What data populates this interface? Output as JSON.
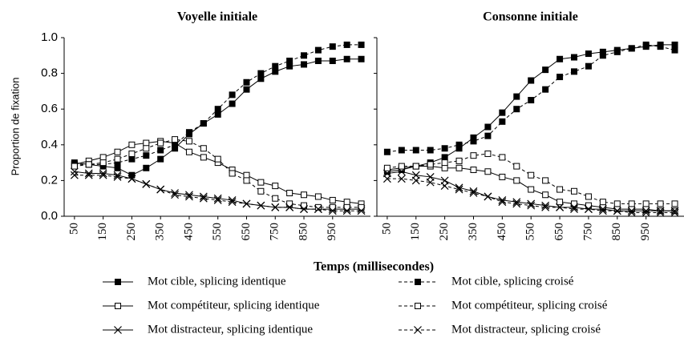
{
  "y_label": "Proportion de fixation",
  "x_label": "Temps (millisecondes)",
  "chart_data": [
    {
      "type": "line",
      "title": "Voyelle initiale",
      "x": [
        50,
        100,
        150,
        200,
        250,
        300,
        350,
        400,
        450,
        500,
        550,
        600,
        650,
        700,
        750,
        800,
        850,
        900,
        950,
        1000,
        1050
      ],
      "xlim": [
        14,
        1082
      ],
      "xticks": [
        50,
        150,
        250,
        350,
        450,
        550,
        650,
        750,
        850,
        950
      ],
      "ylim": [
        0,
        1
      ],
      "yticks": [
        {
          "value": 0,
          "label": "0.0"
        },
        {
          "value": 0.2,
          "label": "0.2"
        },
        {
          "value": 0.4,
          "label": "0.4"
        },
        {
          "value": 0.6,
          "label": "0.6"
        },
        {
          "value": 0.8,
          "label": "0.8"
        },
        {
          "value": 1,
          "label": "1.0"
        }
      ],
      "series": [
        {
          "name": "Mot cible, splicing identique",
          "color": "#000000",
          "marker": "filled-square",
          "dash": false,
          "values": [
            0.3,
            0.29,
            0.28,
            0.27,
            0.23,
            0.27,
            0.32,
            0.38,
            0.46,
            0.52,
            0.57,
            0.63,
            0.71,
            0.77,
            0.81,
            0.84,
            0.85,
            0.87,
            0.87,
            0.88,
            0.88
          ]
        },
        {
          "name": "Mot compétiteur, splicing identique",
          "color": "#000000",
          "marker": "open-square",
          "dash": false,
          "values": [
            0.29,
            0.31,
            0.33,
            0.36,
            0.4,
            0.41,
            0.42,
            0.41,
            0.36,
            0.33,
            0.3,
            0.26,
            0.23,
            0.19,
            0.17,
            0.13,
            0.12,
            0.11,
            0.09,
            0.08,
            0.07
          ]
        },
        {
          "name": "Mot distracteur, splicing identique",
          "color": "#000000",
          "marker": "cross",
          "dash": false,
          "values": [
            0.25,
            0.24,
            0.24,
            0.23,
            0.21,
            0.18,
            0.15,
            0.13,
            0.12,
            0.11,
            0.1,
            0.09,
            0.07,
            0.06,
            0.05,
            0.05,
            0.04,
            0.04,
            0.04,
            0.04,
            0.04
          ]
        },
        {
          "name": "Mot cible, splicing croisé",
          "color": "#000000",
          "marker": "filled-square",
          "dash": true,
          "values": [
            0.29,
            0.29,
            0.29,
            0.3,
            0.32,
            0.34,
            0.37,
            0.4,
            0.47,
            0.52,
            0.6,
            0.68,
            0.75,
            0.8,
            0.84,
            0.87,
            0.9,
            0.93,
            0.95,
            0.96,
            0.96
          ]
        },
        {
          "name": "Mot compétiteur, splicing croisé",
          "color": "#000000",
          "marker": "open-square",
          "dash": true,
          "values": [
            0.28,
            0.29,
            0.3,
            0.32,
            0.35,
            0.38,
            0.41,
            0.43,
            0.42,
            0.38,
            0.32,
            0.24,
            0.2,
            0.14,
            0.1,
            0.07,
            0.06,
            0.05,
            0.05,
            0.05,
            0.05
          ]
        },
        {
          "name": "Mot distracteur, splicing croisé",
          "color": "#000000",
          "marker": "cross",
          "dash": true,
          "values": [
            0.23,
            0.23,
            0.23,
            0.22,
            0.21,
            0.18,
            0.15,
            0.12,
            0.11,
            0.1,
            0.09,
            0.08,
            0.07,
            0.06,
            0.05,
            0.05,
            0.04,
            0.04,
            0.03,
            0.03,
            0.03
          ]
        }
      ]
    },
    {
      "type": "line",
      "title": "Consonne initiale",
      "x": [
        50,
        100,
        150,
        200,
        250,
        300,
        350,
        400,
        450,
        500,
        550,
        600,
        650,
        700,
        750,
        800,
        850,
        900,
        950,
        1000,
        1050
      ],
      "xlim": [
        14,
        1082
      ],
      "xticks": [
        50,
        150,
        250,
        350,
        450,
        550,
        650,
        750,
        850,
        950
      ],
      "ylim": [
        0,
        1
      ],
      "series": [
        {
          "color": "#000000",
          "marker": "filled-square",
          "dash": false,
          "values": [
            0.25,
            0.26,
            0.28,
            0.3,
            0.33,
            0.38,
            0.44,
            0.5,
            0.58,
            0.67,
            0.76,
            0.82,
            0.88,
            0.89,
            0.91,
            0.92,
            0.93,
            0.94,
            0.95,
            0.96,
            0.96
          ]
        },
        {
          "color": "#000000",
          "marker": "open-square",
          "dash": false,
          "values": [
            0.26,
            0.27,
            0.28,
            0.28,
            0.27,
            0.27,
            0.26,
            0.25,
            0.22,
            0.2,
            0.15,
            0.12,
            0.08,
            0.07,
            0.06,
            0.05,
            0.04,
            0.04,
            0.04,
            0.03,
            0.03
          ]
        },
        {
          "color": "#000000",
          "marker": "cross",
          "dash": false,
          "values": [
            0.24,
            0.25,
            0.23,
            0.22,
            0.2,
            0.16,
            0.14,
            0.11,
            0.09,
            0.08,
            0.07,
            0.06,
            0.05,
            0.05,
            0.04,
            0.04,
            0.03,
            0.03,
            0.03,
            0.03,
            0.03
          ]
        },
        {
          "color": "#000000",
          "marker": "filled-square",
          "dash": true,
          "values": [
            0.36,
            0.37,
            0.37,
            0.37,
            0.38,
            0.4,
            0.42,
            0.45,
            0.53,
            0.6,
            0.65,
            0.71,
            0.78,
            0.81,
            0.84,
            0.9,
            0.92,
            0.94,
            0.96,
            0.95,
            0.93
          ]
        },
        {
          "color": "#000000",
          "marker": "open-square",
          "dash": true,
          "values": [
            0.27,
            0.28,
            0.28,
            0.29,
            0.3,
            0.31,
            0.34,
            0.35,
            0.33,
            0.28,
            0.23,
            0.2,
            0.15,
            0.14,
            0.11,
            0.08,
            0.07,
            0.07,
            0.07,
            0.07,
            0.07
          ]
        },
        {
          "color": "#000000",
          "marker": "cross",
          "dash": true,
          "values": [
            0.21,
            0.21,
            0.2,
            0.19,
            0.17,
            0.15,
            0.13,
            0.11,
            0.08,
            0.07,
            0.06,
            0.05,
            0.05,
            0.04,
            0.04,
            0.03,
            0.03,
            0.02,
            0.02,
            0.02,
            0.02
          ]
        }
      ]
    }
  ]
}
